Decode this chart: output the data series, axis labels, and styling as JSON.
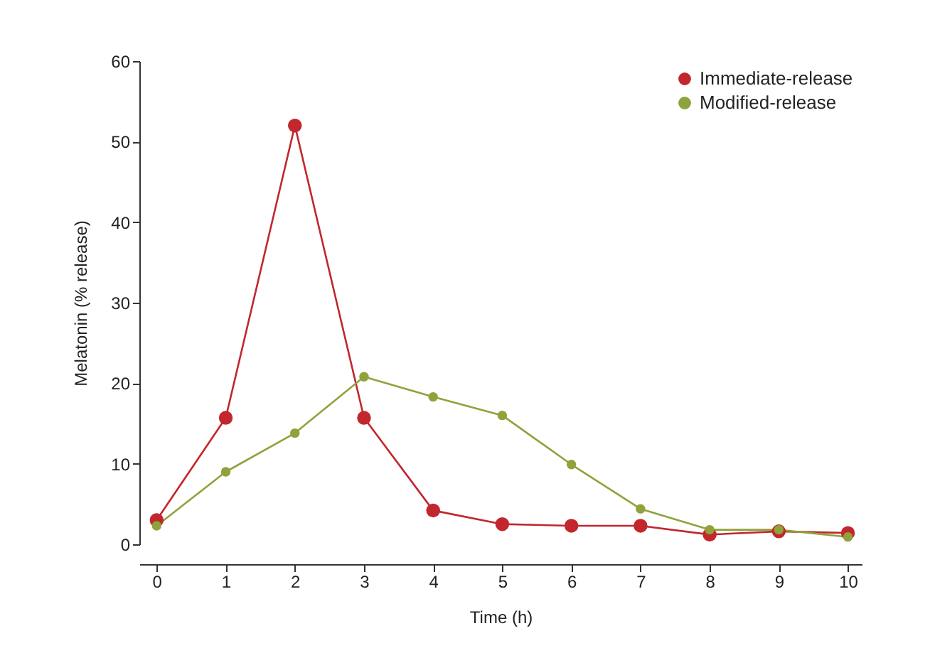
{
  "chart_data": {
    "type": "line",
    "xlabel": "Time (h)",
    "ylabel": "Melatonin (% release)",
    "x": [
      0,
      1,
      2,
      3,
      4,
      5,
      6,
      7,
      8,
      9,
      10
    ],
    "series": [
      {
        "name": "Immediate-release",
        "color": "#c1272d",
        "values": [
          3,
          15.7,
          52,
          15.7,
          4.2,
          2.5,
          2.3,
          2.3,
          1.2,
          1.6,
          1.4
        ]
      },
      {
        "name": "Modified-release",
        "color": "#8ea33b",
        "values": [
          2.3,
          9,
          13.8,
          20.8,
          18.3,
          16,
          9.9,
          4.4,
          1.8,
          1.8,
          0.9
        ]
      }
    ],
    "xlim": [
      -0.25,
      10.2
    ],
    "ylim": [
      0,
      60
    ],
    "xticks": [
      0,
      1,
      2,
      3,
      4,
      5,
      6,
      7,
      8,
      9,
      10
    ],
    "yticks": [
      0,
      10,
      20,
      30,
      40,
      50,
      60
    ],
    "grid": false,
    "legend": "top right",
    "marker": "circle",
    "line_style": "solid"
  }
}
